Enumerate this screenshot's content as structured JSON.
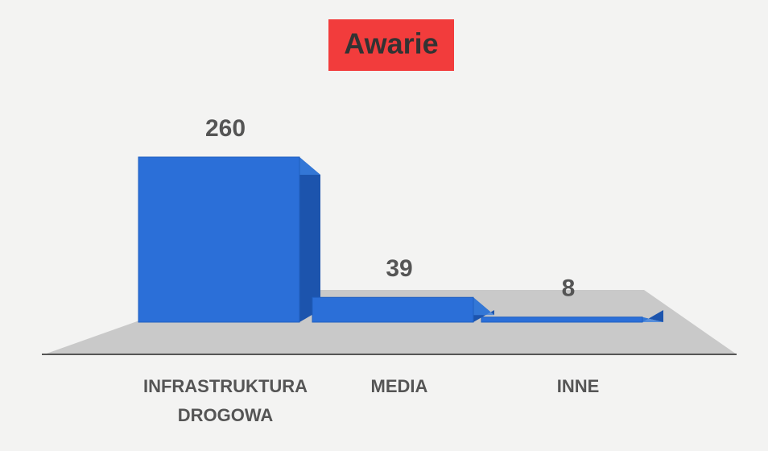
{
  "chart_data": {
    "type": "bar3d",
    "title": "Awarie",
    "categories": [
      "INFRASTRUKTURA DROGOWA",
      "MEDIA",
      "INNE"
    ],
    "values": [
      260,
      39,
      8
    ],
    "color": "#2b6fd8"
  }
}
